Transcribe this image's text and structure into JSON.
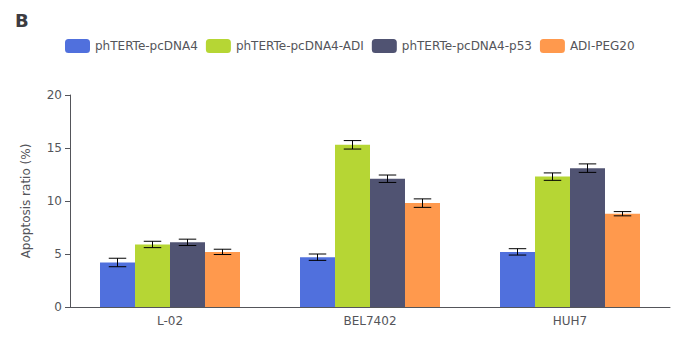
{
  "chart_data": {
    "type": "bar",
    "title": "B",
    "ylabel": "Apoptosis ratio (%)",
    "categories": [
      "L-02",
      "BEL7402",
      "HUH7"
    ],
    "series": [
      {
        "name": "phTERTe-pcDNA4",
        "values": [
          4.2,
          4.7,
          5.2
        ],
        "errors": [
          0.4,
          0.3,
          0.3
        ]
      },
      {
        "name": "phTERTe-pcDNA4-ADI",
        "values": [
          5.9,
          15.3,
          12.3
        ],
        "errors": [
          0.3,
          0.4,
          0.35
        ]
      },
      {
        "name": "phTERTe-pcDNA4-p53",
        "values": [
          6.1,
          12.1,
          13.1
        ],
        "errors": [
          0.3,
          0.35,
          0.4
        ]
      },
      {
        "name": "ADI-PEG20",
        "values": [
          5.2,
          9.8,
          8.8
        ],
        "errors": [
          0.25,
          0.4,
          0.2
        ]
      }
    ],
    "ylim": [
      0,
      20
    ],
    "yticks": [
      0,
      5,
      10,
      15,
      20
    ],
    "grid": false,
    "legend": "upper left"
  }
}
